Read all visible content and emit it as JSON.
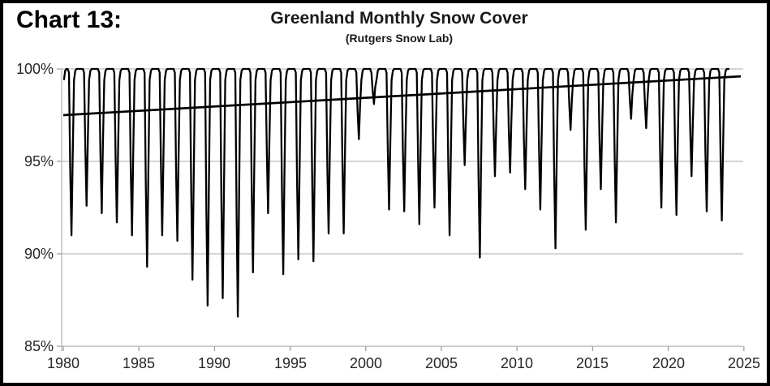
{
  "window": {
    "chart_label": "Chart 13:"
  },
  "chart_data": {
    "type": "line",
    "title": "Greenland Monthly Snow Cover",
    "subtitle": "(Rutgers Snow Lab)",
    "grid": "horizontal-only",
    "legend": "none",
    "x_axis": {
      "min": 1980,
      "max": 2025,
      "tick_step": 5,
      "tick_labels": [
        "1980",
        "1985",
        "1990",
        "1995",
        "2000",
        "2005",
        "2010",
        "2015",
        "2020",
        "2025"
      ]
    },
    "y_axis": {
      "min": 85,
      "max": 100,
      "unit": "%",
      "tick_values": [
        100,
        95,
        90,
        85
      ],
      "tick_labels": [
        "100%",
        "95%",
        "90%",
        "85%"
      ]
    },
    "data_start": "Jan 1980",
    "data_end": "Jan 2024",
    "series": [
      {
        "name": "Greenland monthly snow cover",
        "color": "#000000",
        "pattern": "monthly values near 100% from October through May, dropping to an annual summer minimum each July",
        "annual_summer_minima": [
          [
            1980,
            91.0
          ],
          [
            1981,
            92.6
          ],
          [
            1982,
            92.2
          ],
          [
            1983,
            91.7
          ],
          [
            1984,
            91.0
          ],
          [
            1985,
            89.3
          ],
          [
            1986,
            91.0
          ],
          [
            1987,
            90.7
          ],
          [
            1988,
            88.6
          ],
          [
            1989,
            87.2
          ],
          [
            1990,
            87.6
          ],
          [
            1991,
            86.6
          ],
          [
            1992,
            89.0
          ],
          [
            1993,
            92.2
          ],
          [
            1994,
            88.9
          ],
          [
            1995,
            89.7
          ],
          [
            1996,
            89.6
          ],
          [
            1997,
            91.1
          ],
          [
            1998,
            91.1
          ],
          [
            1999,
            96.2
          ],
          [
            2000,
            98.1
          ],
          [
            2001,
            92.4
          ],
          [
            2002,
            92.3
          ],
          [
            2003,
            91.6
          ],
          [
            2004,
            92.5
          ],
          [
            2005,
            91.0
          ],
          [
            2006,
            94.8
          ],
          [
            2007,
            89.8
          ],
          [
            2008,
            94.2
          ],
          [
            2009,
            94.4
          ],
          [
            2010,
            93.5
          ],
          [
            2011,
            92.4
          ],
          [
            2012,
            90.3
          ],
          [
            2013,
            96.7
          ],
          [
            2014,
            91.3
          ],
          [
            2015,
            93.5
          ],
          [
            2016,
            91.7
          ],
          [
            2017,
            97.3
          ],
          [
            2018,
            96.8
          ],
          [
            2019,
            92.5
          ],
          [
            2020,
            92.1
          ],
          [
            2021,
            94.2
          ],
          [
            2022,
            92.3
          ],
          [
            2023,
            91.8
          ]
        ],
        "first_months_1980": [
          99.4,
          99.9
        ]
      }
    ],
    "trend_line": {
      "name": "linear trend",
      "color": "#000000",
      "start": [
        1980.0,
        97.5
      ],
      "end": [
        2024.8,
        99.6
      ]
    }
  }
}
